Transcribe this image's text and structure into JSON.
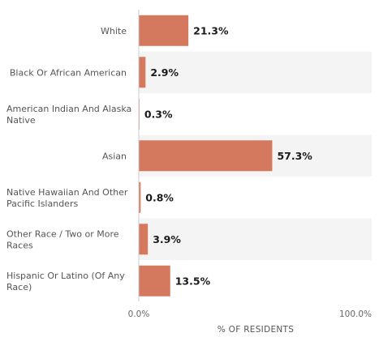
{
  "chart_data": {
    "type": "bar",
    "orientation": "horizontal",
    "categories": [
      "White",
      "Black Or African American",
      "American Indian And Alaska Native",
      "Asian",
      "Native Hawaiian And Other Pacific Islanders",
      "Other Race / Two or More Races",
      "Hispanic Or Latino (Of Any Race)"
    ],
    "category_lines": [
      [
        "White"
      ],
      [
        "Black Or African American"
      ],
      [
        "American Indian And Alaska",
        "Native"
      ],
      [
        "Asian"
      ],
      [
        "Native Hawaiian And Other",
        "Pacific Islanders"
      ],
      [
        "Other Race / Two or More",
        "Races"
      ],
      [
        "Hispanic Or Latino (Of Any",
        "Race)"
      ]
    ],
    "values": [
      21.3,
      2.9,
      0.3,
      57.3,
      0.8,
      3.9,
      13.5
    ],
    "value_labels": [
      "21.3%",
      "2.9%",
      "0.3%",
      "57.3%",
      "0.8%",
      "3.9%",
      "13.5%"
    ],
    "xlim": [
      0,
      100
    ],
    "xticks": [
      "0.0%",
      "100.0%"
    ],
    "xlabel": "% OF RESIDENTS",
    "ylabel": "",
    "title": "",
    "grid": false,
    "colors": {
      "bar": "#d4795e",
      "alt_row": "#f4f4f4",
      "axis": "#cccccc"
    }
  }
}
